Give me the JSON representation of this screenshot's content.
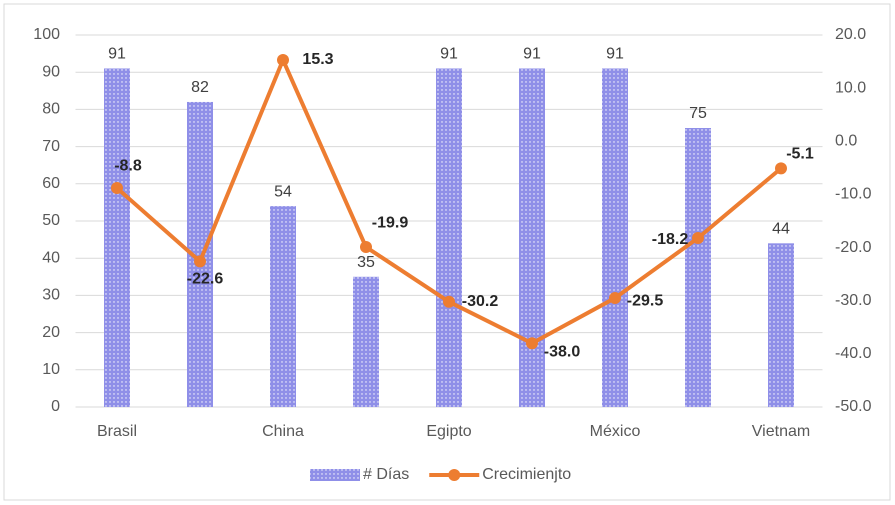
{
  "chart_data": {
    "type": "bar",
    "categories": [
      "Brasil",
      null,
      "China",
      null,
      "Egipto",
      null,
      "México",
      null,
      "Vietnam"
    ],
    "series": [
      {
        "name": "# Días",
        "color": "#8f8fe8",
        "values": [
          91,
          82,
          54,
          35,
          91,
          91,
          91,
          75,
          44
        ]
      },
      {
        "name": "Crecimienjto",
        "color": "#ed7d31",
        "axis": "y2",
        "type": "line",
        "values": [
          -8.8,
          -22.6,
          15.3,
          -19.9,
          -30.2,
          -38.0,
          -29.5,
          -18.2,
          -5.1
        ],
        "value_labels": [
          "-8.8",
          "-22.6",
          "15.3",
          "-19.9",
          "-30.2",
          "-38.0",
          "-29.5",
          "-18.2",
          "-5.1"
        ]
      }
    ],
    "ylim": [
      0,
      100
    ],
    "yticks": [
      0,
      10,
      20,
      30,
      40,
      50,
      60,
      70,
      80,
      90,
      100
    ],
    "y2lim": [
      -50,
      20
    ],
    "y2ticks": [
      {
        "value": -50,
        "label": "-50.0"
      },
      {
        "value": -40,
        "label": "-40.0"
      },
      {
        "value": -30,
        "label": "-30.0"
      },
      {
        "value": -20,
        "label": "-20.0"
      },
      {
        "value": -10,
        "label": "-10.0"
      },
      {
        "value": 0,
        "label": "0.0"
      },
      {
        "value": 10,
        "label": "10.0"
      },
      {
        "value": 20,
        "label": "20.0"
      }
    ],
    "grid": true,
    "legend": "bottom"
  }
}
